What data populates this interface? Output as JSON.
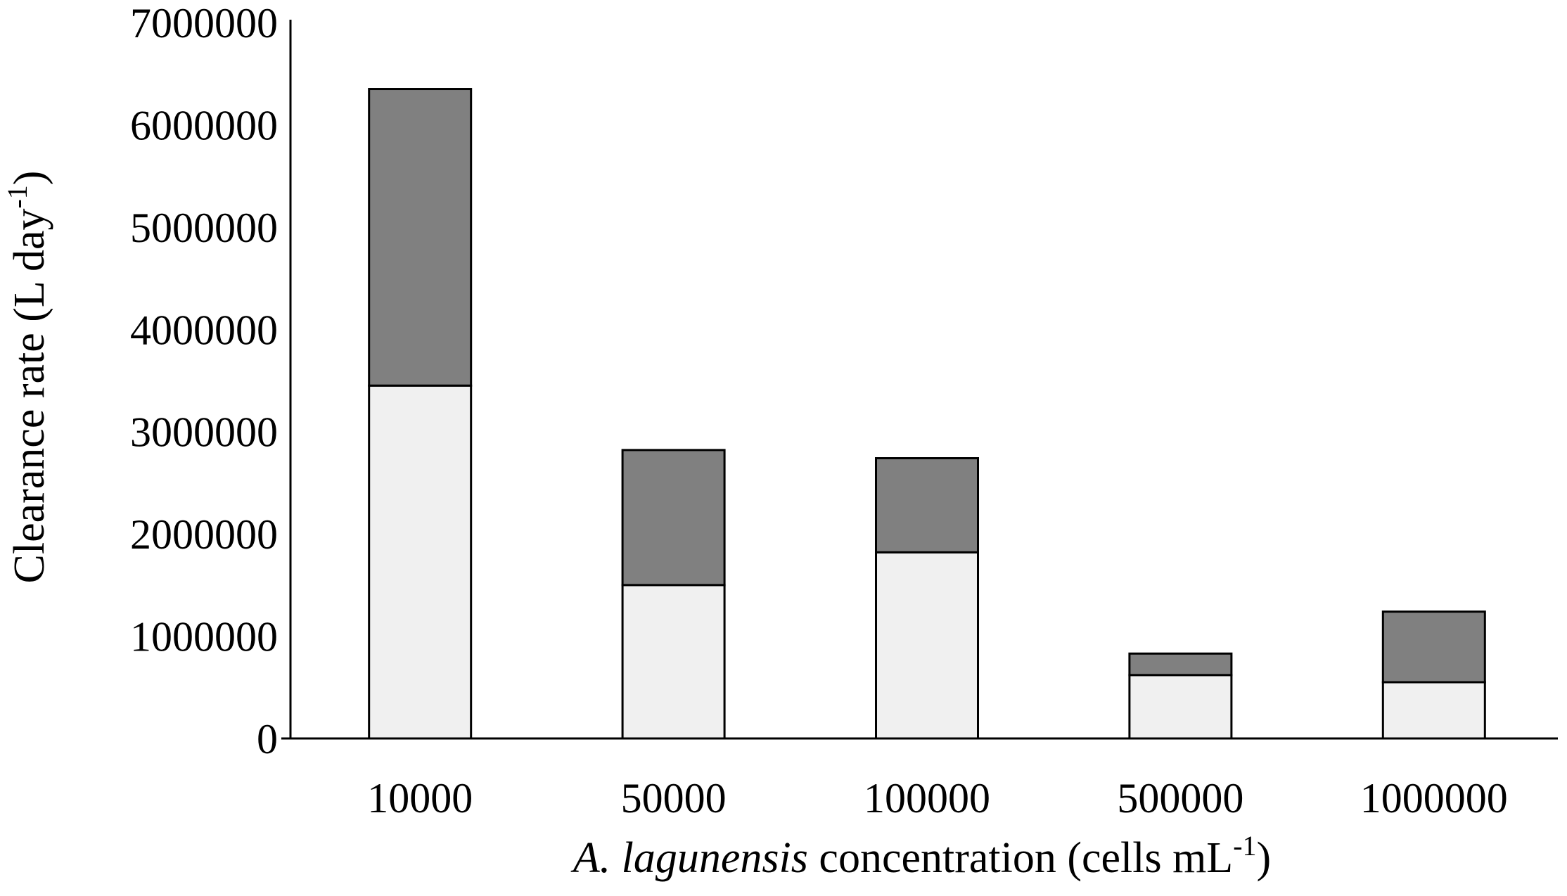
{
  "chart_data": {
    "type": "bar",
    "stacked": true,
    "categories": [
      "10000",
      "50000",
      "100000",
      "500000",
      "1000000"
    ],
    "series": [
      {
        "values": [
          3450000,
          1500000,
          1820000,
          620000,
          550000
        ],
        "color": "#f0f0f0"
      },
      {
        "values": [
          2900000,
          1320000,
          920000,
          210000,
          690000
        ],
        "color": "#808080"
      }
    ],
    "ylim": [
      0,
      7000000
    ],
    "yticks": [
      "0",
      "1000000",
      "2000000",
      "3000000",
      "4000000",
      "5000000",
      "6000000",
      "7000000"
    ],
    "xlabel": {
      "italic_part": "A. lagunensis",
      "rest": " concentration (cells mL",
      "superscript": "-1",
      "close": ")"
    },
    "ylabel": {
      "main": "Clearance rate (L day",
      "superscript": "-1",
      "close": ")"
    },
    "grid": false,
    "legend": "none"
  }
}
